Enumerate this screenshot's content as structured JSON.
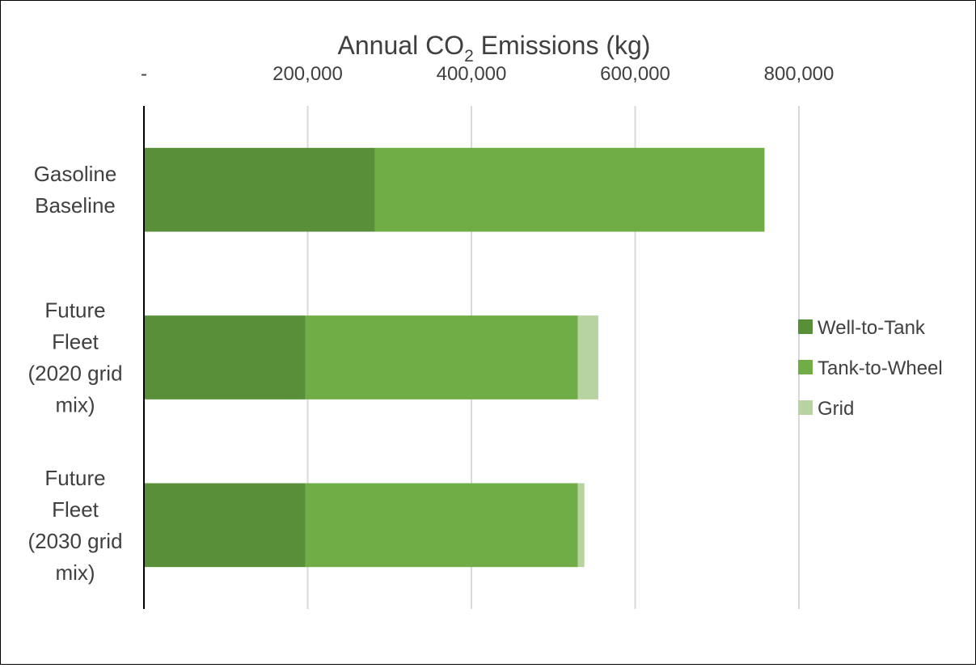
{
  "chart_data": {
    "type": "bar",
    "orientation": "horizontal",
    "stacked": true,
    "title": "Annual CO",
    "title_subscript": "2",
    "title_suffix": " Emissions (kg)",
    "x_axis_position": "top",
    "xlim": [
      0,
      800000
    ],
    "x_ticks": [
      0,
      200000,
      400000,
      600000,
      800000
    ],
    "x_tick_labels": [
      "-",
      "200,000",
      "400,000",
      "600,000",
      "800,000"
    ],
    "grid": true,
    "legend_position": "right",
    "categories": [
      {
        "lines": [
          "Gasoline",
          "Baseline"
        ]
      },
      {
        "lines": [
          "Future",
          "Fleet",
          "(2020 grid",
          "mix)"
        ]
      },
      {
        "lines": [
          "Future",
          "Fleet",
          "(2030 grid",
          "mix)"
        ]
      }
    ],
    "series": [
      {
        "name": "Well-to-Tank",
        "color": "#5a8f3a",
        "values": [
          282000,
          197000,
          197000
        ]
      },
      {
        "name": "Tank-to-Wheel",
        "color": "#70ad47",
        "values": [
          476000,
          333000,
          333000
        ]
      },
      {
        "name": "Grid",
        "color": "#b6d3a1",
        "values": [
          0,
          25000,
          8000
        ]
      }
    ]
  }
}
